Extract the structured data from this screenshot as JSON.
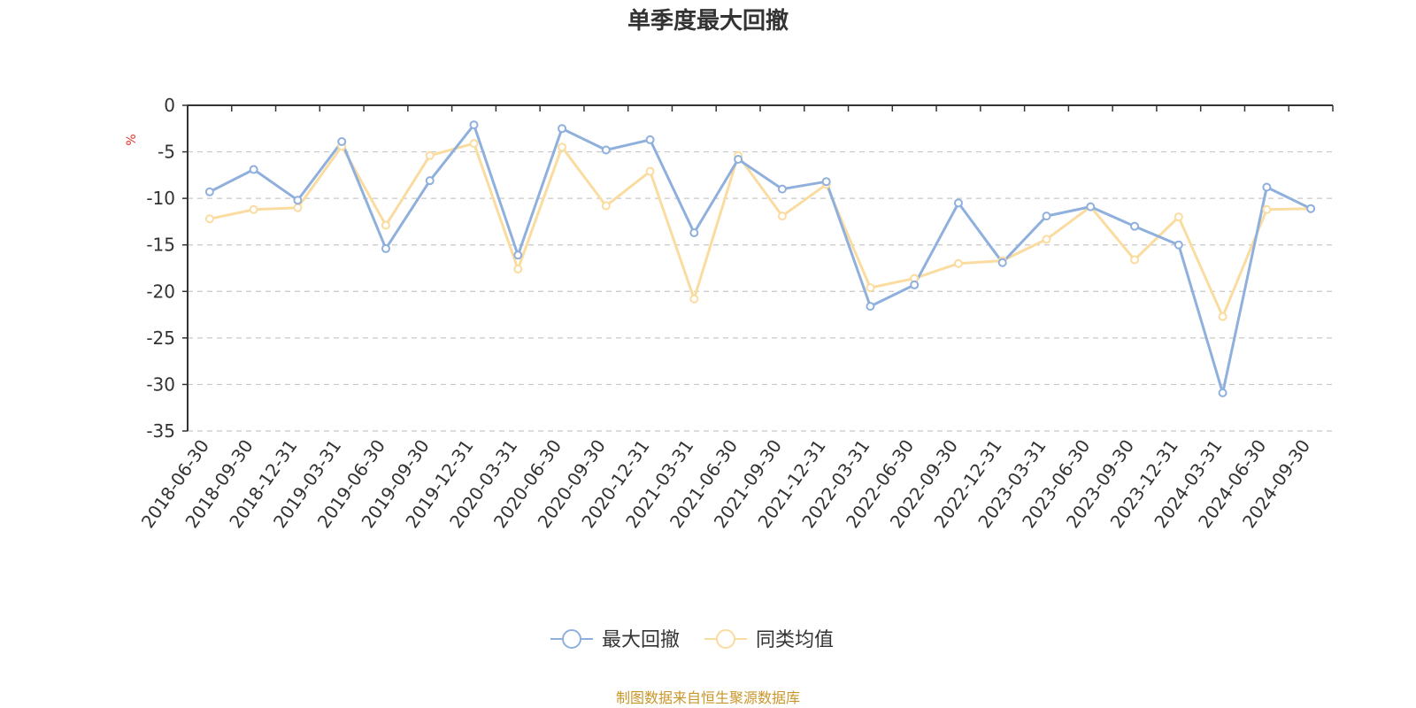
{
  "chart_data": {
    "type": "line",
    "title": "单季度最大回撤",
    "ylabel": "%",
    "xlabel": "",
    "ylim": [
      -35,
      0
    ],
    "yticks": [
      0,
      -5,
      -10,
      -15,
      -20,
      -25,
      -30,
      -35
    ],
    "ytick_labels": [
      "0",
      "-5",
      "-10",
      "-15",
      "-20",
      "-25",
      "-30",
      "-35"
    ],
    "grid": "horizontal-dashed",
    "legend_position": "bottom-center",
    "categories": [
      "2018-06-30",
      "2018-09-30",
      "2018-12-31",
      "2019-03-31",
      "2019-06-30",
      "2019-09-30",
      "2019-12-31",
      "2020-03-31",
      "2020-06-30",
      "2020-09-30",
      "2020-12-31",
      "2021-03-31",
      "2021-06-30",
      "2021-09-30",
      "2021-12-31",
      "2022-03-31",
      "2022-06-30",
      "2022-09-30",
      "2022-12-31",
      "2023-03-31",
      "2023-06-30",
      "2023-09-30",
      "2023-12-31",
      "2024-03-31",
      "2024-06-30",
      "2024-09-30"
    ],
    "series": [
      {
        "name": "最大回撤",
        "color": "#8fb0dd",
        "values": [
          -9.3,
          -6.9,
          -10.2,
          -3.9,
          -15.4,
          -8.1,
          -2.1,
          -16.1,
          -2.5,
          -4.8,
          -3.7,
          -13.7,
          -5.8,
          -9.0,
          -8.2,
          -21.6,
          -19.3,
          -10.5,
          -16.9,
          -11.9,
          -10.9,
          -13.0,
          -15.0,
          -30.9,
          -8.8,
          -11.1
        ]
      },
      {
        "name": "同类均值",
        "color": "#fbdca0",
        "values": [
          -12.2,
          -11.2,
          -11.0,
          -4.4,
          -12.9,
          -5.4,
          -4.1,
          -17.6,
          -4.5,
          -10.8,
          -7.1,
          -20.8,
          -5.4,
          -11.9,
          -8.5,
          -19.6,
          -18.6,
          -17.0,
          -16.7,
          -14.4,
          -10.9,
          -16.6,
          -12.0,
          -22.7,
          -11.2,
          -11.1
        ]
      }
    ]
  },
  "footer": {
    "source": "制图数据来自恒生聚源数据库",
    "source_color": "#c9962a"
  },
  "styles": {
    "unit_color": "#e0322b",
    "axis_color": "#333333",
    "grid_color": "#c8c8c8"
  }
}
